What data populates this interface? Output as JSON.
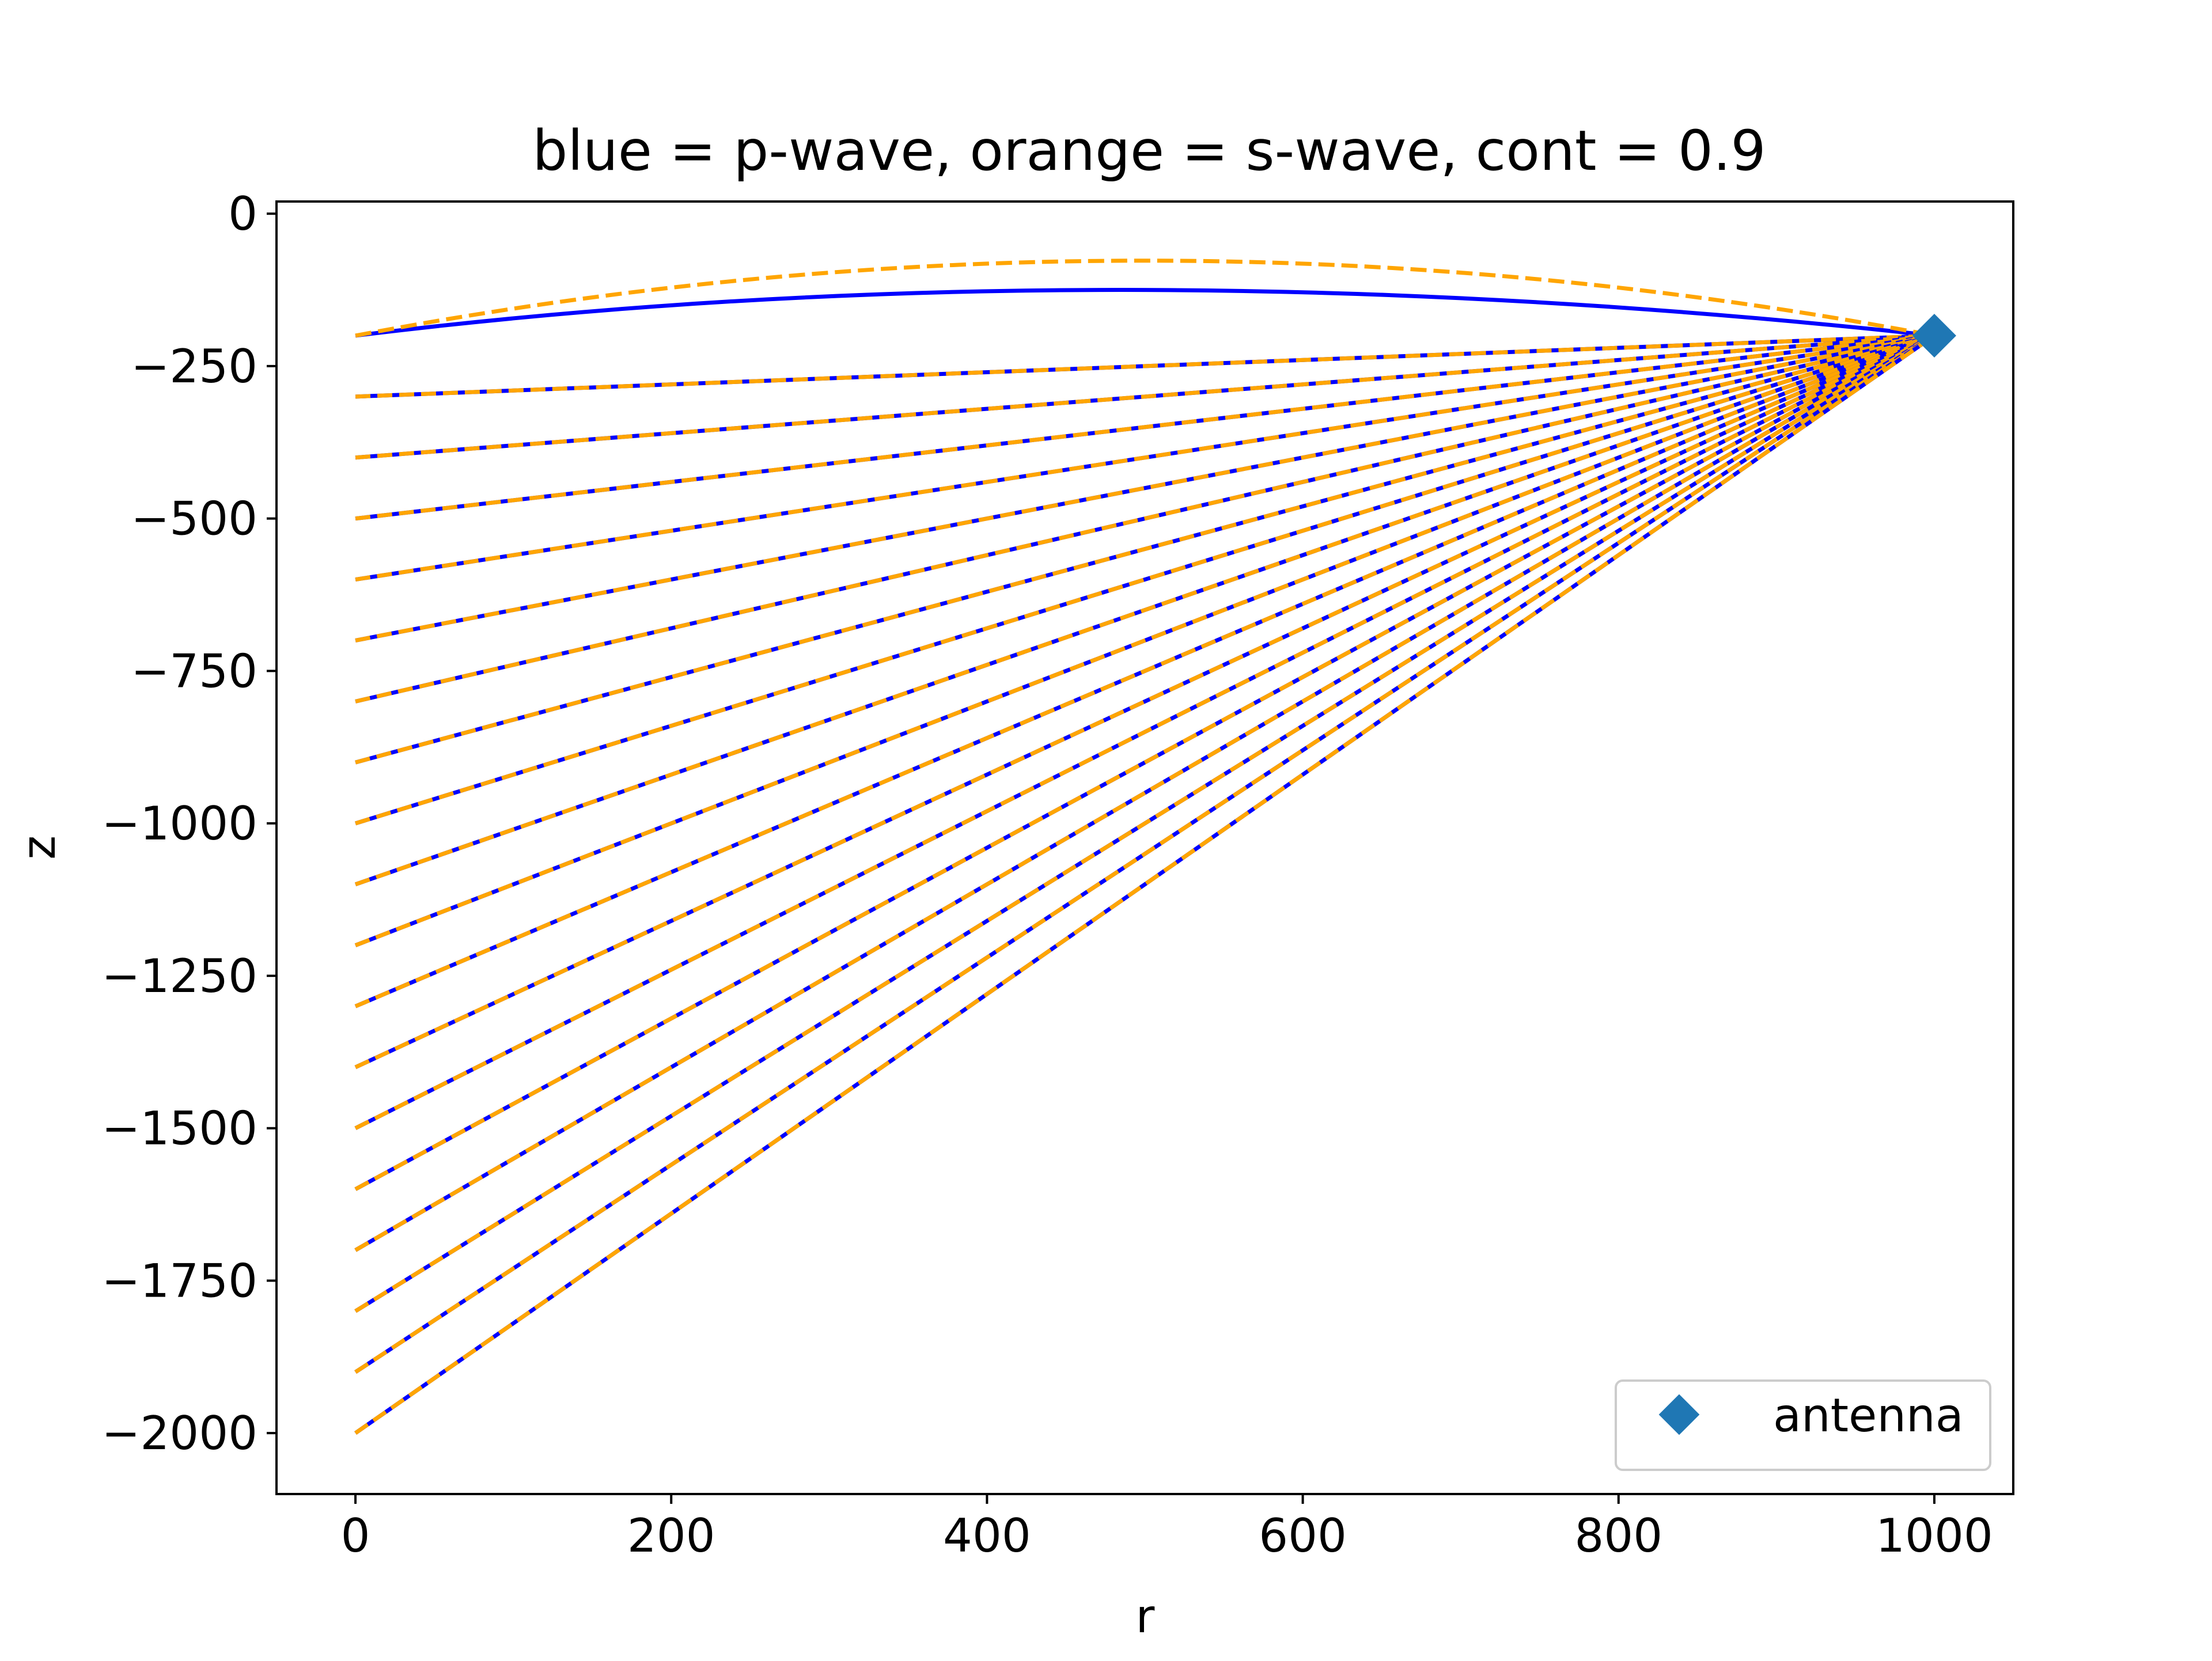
{
  "chart_data": {
    "type": "line",
    "title": "blue = p-wave, orange = s-wave, cont = 0.9",
    "xlabel": "r",
    "ylabel": "z",
    "xlim": [
      -50,
      1050
    ],
    "ylim": [
      -2100,
      20
    ],
    "xticks": [
      0,
      200,
      400,
      600,
      800,
      1000
    ],
    "yticks": [
      0,
      -250,
      -500,
      -750,
      -1000,
      -1250,
      -1500,
      -1750,
      -2000
    ],
    "xtick_labels": [
      "0",
      "200",
      "400",
      "600",
      "800",
      "1000"
    ],
    "ytick_labels": [
      "0",
      "−250",
      "−500",
      "−750",
      "−1000",
      "−1250",
      "−1500",
      "−1750",
      "−2000"
    ],
    "grid": false,
    "legend": {
      "position": "lower-right",
      "entries": [
        {
          "label": "antenna",
          "marker": "diamond",
          "color": "#1f77b4"
        }
      ]
    },
    "antenna": {
      "x": 1000,
      "y": -200
    },
    "source_r": 0,
    "source_depths": [
      -200,
      -300,
      -400,
      -500,
      -600,
      -700,
      -800,
      -900,
      -1000,
      -1100,
      -1200,
      -1300,
      -1400,
      -1500,
      -1600,
      -1700,
      -1800,
      -1900,
      -2000
    ],
    "curved_rays": {
      "p_wave_apex": {
        "x": 470,
        "y": -125
      },
      "s_wave_apex": {
        "x": 500,
        "y": -77
      }
    },
    "series": [
      {
        "name": "p-wave",
        "color": "#0000ff",
        "style": "solid"
      },
      {
        "name": "s-wave",
        "color": "#ffa500",
        "style": "dashed"
      }
    ]
  }
}
